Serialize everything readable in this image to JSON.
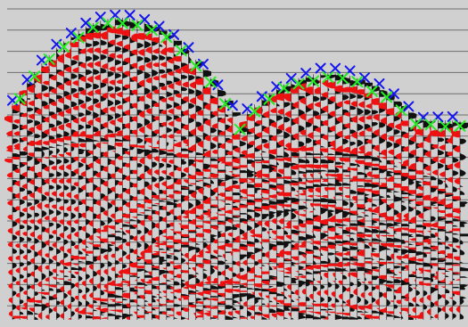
{
  "display": {
    "background_color": "#d0d0d0",
    "timing_line_color": "#6e6e6e",
    "trace_count": 62,
    "timing_line_count": 15
  },
  "colors": {
    "positive_fill": "#111111",
    "negative_fill": "#ee1111",
    "pick_blue": "#1515ee",
    "pick_green": "#22ee22"
  },
  "picks": {
    "blue_marker": "x-marker",
    "green_marker": "x-marker"
  }
}
